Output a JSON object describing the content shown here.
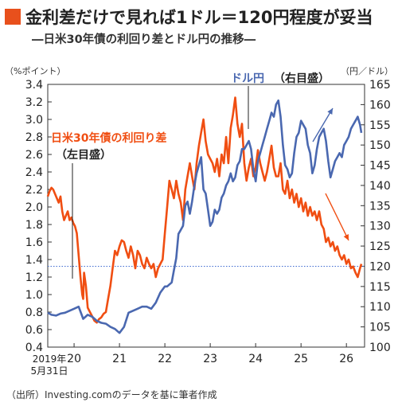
{
  "title": "金利差だけで見れば1ドル＝120円程度が妥当",
  "subtitle": "―日米30年債の利回り差とドル円の推移―",
  "source": "（出所）Investing.comのデータを基に筆者作成",
  "colors": {
    "accent": "#e8501c",
    "orange": "#f04e12",
    "blue": "#4a68b0",
    "dotted": "#3f6bd0"
  },
  "chart_data": {
    "type": "line",
    "left_axis": {
      "unit_label": "（%ポイント）",
      "min": 0.4,
      "max": 3.4,
      "ticks": [
        "0.4",
        "0.6",
        "0.8",
        "1.0",
        "1.2",
        "1.4",
        "1.6",
        "1.8",
        "2.0",
        "2.2",
        "2.4",
        "2.6",
        "2.8",
        "3.0",
        "3.2",
        "3.4"
      ]
    },
    "right_axis": {
      "unit_label": "（円／ドル）",
      "min": 100,
      "max": 165,
      "ticks": [
        "100",
        "105",
        "110",
        "115",
        "120",
        "125",
        "130",
        "135",
        "140",
        "145",
        "150",
        "155",
        "160",
        "165"
      ]
    },
    "x_axis": {
      "min": 2019.42,
      "max": 2026.4,
      "ticks": [
        {
          "x": 2020,
          "label": "20"
        },
        {
          "x": 2021,
          "label": "21"
        },
        {
          "x": 2022,
          "label": "22"
        },
        {
          "x": 2023,
          "label": "23"
        },
        {
          "x": 2024,
          "label": "24"
        },
        {
          "x": 2025,
          "label": "25"
        },
        {
          "x": 2026,
          "label": "26"
        }
      ],
      "start_label_1": "2019年",
      "start_label_2": "5月31日"
    },
    "reference_line": {
      "axis": "right",
      "value": 120
    },
    "series": [
      {
        "name": "日米30年債の利回り差",
        "axis_note": "（左目盛）",
        "axis": "left",
        "color": "#f04e12",
        "x": [
          2019.42,
          2019.46,
          2019.5,
          2019.54,
          2019.58,
          2019.62,
          2019.66,
          2019.7,
          2019.74,
          2019.78,
          2019.82,
          2019.86,
          2019.9,
          2019.94,
          2019.98,
          2020.02,
          2020.06,
          2020.1,
          2020.14,
          2020.18,
          2020.2,
          2020.22,
          2020.26,
          2020.3,
          2020.35,
          2020.4,
          2020.45,
          2020.5,
          2020.55,
          2020.6,
          2020.65,
          2020.7,
          2020.75,
          2020.8,
          2020.85,
          2020.9,
          2020.95,
          2021.0,
          2021.05,
          2021.1,
          2021.15,
          2021.2,
          2021.25,
          2021.3,
          2021.35,
          2021.4,
          2021.45,
          2021.5,
          2021.55,
          2021.6,
          2021.65,
          2021.7,
          2021.75,
          2021.8,
          2021.85,
          2021.9,
          2021.95,
          2022.0,
          2022.05,
          2022.1,
          2022.15,
          2022.2,
          2022.25,
          2022.3,
          2022.35,
          2022.4,
          2022.45,
          2022.5,
          2022.55,
          2022.6,
          2022.65,
          2022.7,
          2022.75,
          2022.8,
          2022.85,
          2022.9,
          2022.95,
          2023.0,
          2023.05,
          2023.1,
          2023.15,
          2023.2,
          2023.25,
          2023.3,
          2023.35,
          2023.4,
          2023.45,
          2023.5,
          2023.55,
          2023.6,
          2023.65,
          2023.7,
          2023.75,
          2023.8,
          2023.85,
          2023.9,
          2023.95,
          2024.0,
          2024.05,
          2024.1,
          2024.15,
          2024.2,
          2024.25,
          2024.3,
          2024.35,
          2024.4,
          2024.45,
          2024.5,
          2024.55,
          2024.6,
          2024.65,
          2024.7,
          2024.75,
          2024.8,
          2024.85,
          2024.9,
          2024.95,
          2025.0,
          2025.05,
          2025.1,
          2025.15,
          2025.2,
          2025.25,
          2025.3,
          2025.35,
          2025.4,
          2025.45,
          2025.5,
          2025.55,
          2025.6,
          2025.65,
          2025.7,
          2025.75,
          2025.8,
          2025.85,
          2025.9,
          2025.95,
          2026.0,
          2026.05,
          2026.1,
          2026.15,
          2026.2,
          2026.25,
          2026.3,
          2026.33
        ],
        "values": [
          2.12,
          2.18,
          2.22,
          2.2,
          2.15,
          2.1,
          2.05,
          2.12,
          1.95,
          1.85,
          1.9,
          1.95,
          1.85,
          1.88,
          1.82,
          1.78,
          1.7,
          1.45,
          1.2,
          1.0,
          0.95,
          1.25,
          1.1,
          0.85,
          0.8,
          0.75,
          0.7,
          0.68,
          0.72,
          0.74,
          0.78,
          0.8,
          0.95,
          1.1,
          1.3,
          1.5,
          1.45,
          1.55,
          1.62,
          1.6,
          1.5,
          1.42,
          1.55,
          1.45,
          1.3,
          1.5,
          1.45,
          1.35,
          1.3,
          1.42,
          1.35,
          1.3,
          1.35,
          1.2,
          1.3,
          1.35,
          1.4,
          1.7,
          2.0,
          2.3,
          2.2,
          2.1,
          2.3,
          2.15,
          2.05,
          1.85,
          2.2,
          2.35,
          2.5,
          2.35,
          2.2,
          2.5,
          2.7,
          2.85,
          3.0,
          2.75,
          2.6,
          2.55,
          2.5,
          2.4,
          2.55,
          2.35,
          2.6,
          2.5,
          2.8,
          2.5,
          2.9,
          3.05,
          3.25,
          2.95,
          2.8,
          2.95,
          2.5,
          2.3,
          2.45,
          2.55,
          2.35,
          2.45,
          2.65,
          2.5,
          2.4,
          2.3,
          2.4,
          2.55,
          2.7,
          2.45,
          2.35,
          2.35,
          2.5,
          2.2,
          2.15,
          2.3,
          2.1,
          2.2,
          2.05,
          2.15,
          2.0,
          2.1,
          1.95,
          2.05,
          1.9,
          2.0,
          1.9,
          1.95,
          1.85,
          1.95,
          1.8,
          1.75,
          1.6,
          1.65,
          1.55,
          1.6,
          1.5,
          1.55,
          1.45,
          1.4,
          1.45,
          1.35,
          1.4,
          1.3,
          1.32,
          1.25,
          1.2,
          1.3,
          1.35
        ]
      },
      {
        "name": "ドル円",
        "axis_note": "（右目盛）",
        "axis": "right",
        "color": "#4a68b0",
        "x": [
          2019.42,
          2019.5,
          2019.6,
          2019.7,
          2019.8,
          2019.9,
          2020.0,
          2020.1,
          2020.2,
          2020.3,
          2020.4,
          2020.5,
          2020.6,
          2020.7,
          2020.8,
          2020.9,
          2021.0,
          2021.1,
          2021.2,
          2021.3,
          2021.4,
          2021.5,
          2021.6,
          2021.7,
          2021.8,
          2021.9,
          2022.0,
          2022.05,
          2022.1,
          2022.15,
          2022.2,
          2022.25,
          2022.3,
          2022.35,
          2022.4,
          2022.45,
          2022.5,
          2022.55,
          2022.6,
          2022.65,
          2022.7,
          2022.75,
          2022.8,
          2022.85,
          2022.9,
          2022.95,
          2023.0,
          2023.05,
          2023.1,
          2023.15,
          2023.2,
          2023.25,
          2023.3,
          2023.35,
          2023.4,
          2023.45,
          2023.5,
          2023.55,
          2023.6,
          2023.65,
          2023.7,
          2023.75,
          2023.8,
          2023.85,
          2023.9,
          2023.95,
          2024.0,
          2024.05,
          2024.1,
          2024.15,
          2024.2,
          2024.25,
          2024.3,
          2024.35,
          2024.4,
          2024.45,
          2024.5,
          2024.55,
          2024.6,
          2024.65,
          2024.7,
          2024.75,
          2024.8,
          2024.85,
          2024.9,
          2024.95,
          2025.0,
          2025.05,
          2025.1,
          2025.15,
          2025.2,
          2025.25,
          2025.3,
          2025.35,
          2025.4,
          2025.45,
          2025.5,
          2025.55,
          2025.6,
          2025.65,
          2025.7,
          2025.75,
          2025.8,
          2025.85,
          2025.9,
          2025.95,
          2026.0,
          2026.05,
          2026.1,
          2026.15,
          2026.2,
          2026.25,
          2026.3,
          2026.33
        ],
        "values": [
          108.5,
          108,
          107.8,
          108.3,
          108.5,
          109,
          109.5,
          110,
          107,
          108,
          107.5,
          106.5,
          106,
          105.8,
          105,
          104.5,
          103.5,
          105,
          108.5,
          109,
          109.5,
          110,
          110,
          109.5,
          111,
          113.5,
          115,
          115,
          115.5,
          116,
          119,
          122,
          128,
          129,
          130,
          135,
          136,
          133,
          136,
          140,
          143,
          145,
          147,
          139,
          138,
          134,
          130,
          131,
          134,
          133,
          134,
          137,
          138,
          140,
          141,
          143,
          141,
          142,
          145,
          146,
          149,
          149,
          150,
          151,
          149,
          144,
          141,
          146,
          148,
          150,
          152,
          154,
          156,
          158,
          157,
          160,
          161,
          157,
          150,
          145,
          144,
          142,
          143,
          148,
          152,
          153,
          156,
          155,
          154,
          150,
          148,
          143,
          145,
          149,
          152,
          153,
          154,
          151,
          146,
          142,
          144,
          146,
          147,
          148,
          147,
          150,
          151,
          152,
          154,
          155,
          156,
          157,
          155,
          153
        ]
      }
    ]
  }
}
